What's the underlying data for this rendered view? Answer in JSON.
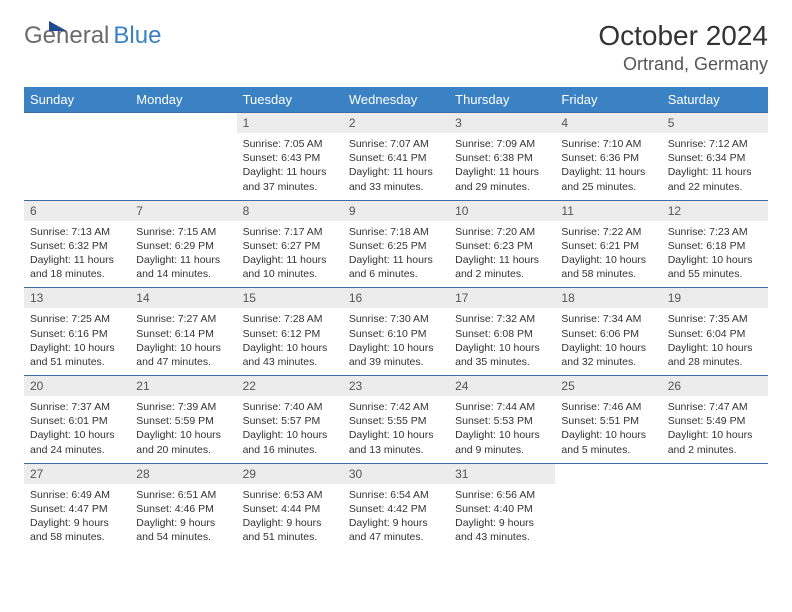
{
  "logo": {
    "general": "General",
    "blue": "Blue"
  },
  "title": "October 2024",
  "location": "Ortrand, Germany",
  "colors": {
    "header_bg": "#3b82c4",
    "header_text": "#ffffff",
    "rule": "#3b6fa3",
    "daynum_bg": "#ececec",
    "text": "#333333",
    "logo_gray": "#6b6b6b",
    "logo_blue": "#3b82c4"
  },
  "weekdays": [
    "Sunday",
    "Monday",
    "Tuesday",
    "Wednesday",
    "Thursday",
    "Friday",
    "Saturday"
  ],
  "weeks": [
    [
      {
        "n": "",
        "sr": "",
        "ss": "",
        "dl": ""
      },
      {
        "n": "",
        "sr": "",
        "ss": "",
        "dl": ""
      },
      {
        "n": "1",
        "sr": "7:05 AM",
        "ss": "6:43 PM",
        "dl": "11 hours and 37 minutes."
      },
      {
        "n": "2",
        "sr": "7:07 AM",
        "ss": "6:41 PM",
        "dl": "11 hours and 33 minutes."
      },
      {
        "n": "3",
        "sr": "7:09 AM",
        "ss": "6:38 PM",
        "dl": "11 hours and 29 minutes."
      },
      {
        "n": "4",
        "sr": "7:10 AM",
        "ss": "6:36 PM",
        "dl": "11 hours and 25 minutes."
      },
      {
        "n": "5",
        "sr": "7:12 AM",
        "ss": "6:34 PM",
        "dl": "11 hours and 22 minutes."
      }
    ],
    [
      {
        "n": "6",
        "sr": "7:13 AM",
        "ss": "6:32 PM",
        "dl": "11 hours and 18 minutes."
      },
      {
        "n": "7",
        "sr": "7:15 AM",
        "ss": "6:29 PM",
        "dl": "11 hours and 14 minutes."
      },
      {
        "n": "8",
        "sr": "7:17 AM",
        "ss": "6:27 PM",
        "dl": "11 hours and 10 minutes."
      },
      {
        "n": "9",
        "sr": "7:18 AM",
        "ss": "6:25 PM",
        "dl": "11 hours and 6 minutes."
      },
      {
        "n": "10",
        "sr": "7:20 AM",
        "ss": "6:23 PM",
        "dl": "11 hours and 2 minutes."
      },
      {
        "n": "11",
        "sr": "7:22 AM",
        "ss": "6:21 PM",
        "dl": "10 hours and 58 minutes."
      },
      {
        "n": "12",
        "sr": "7:23 AM",
        "ss": "6:18 PM",
        "dl": "10 hours and 55 minutes."
      }
    ],
    [
      {
        "n": "13",
        "sr": "7:25 AM",
        "ss": "6:16 PM",
        "dl": "10 hours and 51 minutes."
      },
      {
        "n": "14",
        "sr": "7:27 AM",
        "ss": "6:14 PM",
        "dl": "10 hours and 47 minutes."
      },
      {
        "n": "15",
        "sr": "7:28 AM",
        "ss": "6:12 PM",
        "dl": "10 hours and 43 minutes."
      },
      {
        "n": "16",
        "sr": "7:30 AM",
        "ss": "6:10 PM",
        "dl": "10 hours and 39 minutes."
      },
      {
        "n": "17",
        "sr": "7:32 AM",
        "ss": "6:08 PM",
        "dl": "10 hours and 35 minutes."
      },
      {
        "n": "18",
        "sr": "7:34 AM",
        "ss": "6:06 PM",
        "dl": "10 hours and 32 minutes."
      },
      {
        "n": "19",
        "sr": "7:35 AM",
        "ss": "6:04 PM",
        "dl": "10 hours and 28 minutes."
      }
    ],
    [
      {
        "n": "20",
        "sr": "7:37 AM",
        "ss": "6:01 PM",
        "dl": "10 hours and 24 minutes."
      },
      {
        "n": "21",
        "sr": "7:39 AM",
        "ss": "5:59 PM",
        "dl": "10 hours and 20 minutes."
      },
      {
        "n": "22",
        "sr": "7:40 AM",
        "ss": "5:57 PM",
        "dl": "10 hours and 16 minutes."
      },
      {
        "n": "23",
        "sr": "7:42 AM",
        "ss": "5:55 PM",
        "dl": "10 hours and 13 minutes."
      },
      {
        "n": "24",
        "sr": "7:44 AM",
        "ss": "5:53 PM",
        "dl": "10 hours and 9 minutes."
      },
      {
        "n": "25",
        "sr": "7:46 AM",
        "ss": "5:51 PM",
        "dl": "10 hours and 5 minutes."
      },
      {
        "n": "26",
        "sr": "7:47 AM",
        "ss": "5:49 PM",
        "dl": "10 hours and 2 minutes."
      }
    ],
    [
      {
        "n": "27",
        "sr": "6:49 AM",
        "ss": "4:47 PM",
        "dl": "9 hours and 58 minutes."
      },
      {
        "n": "28",
        "sr": "6:51 AM",
        "ss": "4:46 PM",
        "dl": "9 hours and 54 minutes."
      },
      {
        "n": "29",
        "sr": "6:53 AM",
        "ss": "4:44 PM",
        "dl": "9 hours and 51 minutes."
      },
      {
        "n": "30",
        "sr": "6:54 AM",
        "ss": "4:42 PM",
        "dl": "9 hours and 47 minutes."
      },
      {
        "n": "31",
        "sr": "6:56 AM",
        "ss": "4:40 PM",
        "dl": "9 hours and 43 minutes."
      },
      {
        "n": "",
        "sr": "",
        "ss": "",
        "dl": ""
      },
      {
        "n": "",
        "sr": "",
        "ss": "",
        "dl": ""
      }
    ]
  ],
  "labels": {
    "sunrise": "Sunrise: ",
    "sunset": "Sunset: ",
    "daylight": "Daylight: "
  }
}
